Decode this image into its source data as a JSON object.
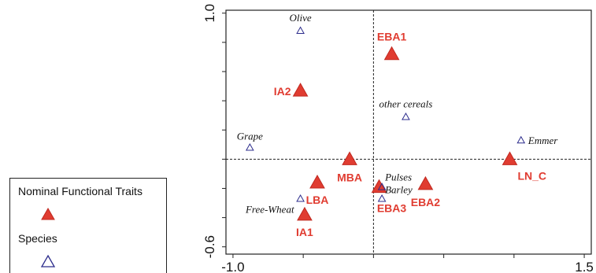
{
  "chart_data": {
    "type": "scatter",
    "x_ticks": [
      "-1.0",
      "1.5"
    ],
    "y_ticks": [
      "1.0",
      "-0.6"
    ],
    "xlim": [
      -1.05,
      1.55
    ],
    "ylim": [
      -0.65,
      1.02
    ],
    "reference_lines": {
      "x": 0.0,
      "y": 0.0
    },
    "series": [
      {
        "name": "Nominal Functional Traits",
        "marker": "filled-triangle",
        "color": "#e03c31",
        "points": [
          {
            "label": "EBA1",
            "x": 0.13,
            "y": 0.72
          },
          {
            "label": "IA2",
            "x": -0.52,
            "y": 0.47
          },
          {
            "label": "MBA",
            "x": -0.17,
            "y": 0.0
          },
          {
            "label": "LBA",
            "x": -0.4,
            "y": -0.16
          },
          {
            "label": "IA1",
            "x": -0.49,
            "y": -0.38
          },
          {
            "label": "EBA3",
            "x": 0.04,
            "y": -0.19
          },
          {
            "label": "EBA2",
            "x": 0.37,
            "y": -0.17
          },
          {
            "label": "LN_C",
            "x": 0.97,
            "y": 0.0
          }
        ]
      },
      {
        "name": "Species",
        "marker": "open-triangle",
        "color": "#2c2c8c",
        "points": [
          {
            "label": "Olive",
            "x": -0.52,
            "y": 0.88
          },
          {
            "label": "other cereals",
            "x": 0.23,
            "y": 0.29
          },
          {
            "label": "Grape",
            "x": -0.88,
            "y": 0.08
          },
          {
            "label": "Emmer",
            "x": 1.05,
            "y": 0.13
          },
          {
            "label": "Pulses",
            "x": 0.06,
            "y": -0.19
          },
          {
            "label": "Barley",
            "x": 0.06,
            "y": -0.27
          },
          {
            "label": "Free-Wheat",
            "x": -0.52,
            "y": -0.27
          }
        ]
      }
    ],
    "legend": {
      "placement": "bottom-left",
      "entries": [
        "Nominal Functional Traits",
        "Species"
      ]
    }
  }
}
